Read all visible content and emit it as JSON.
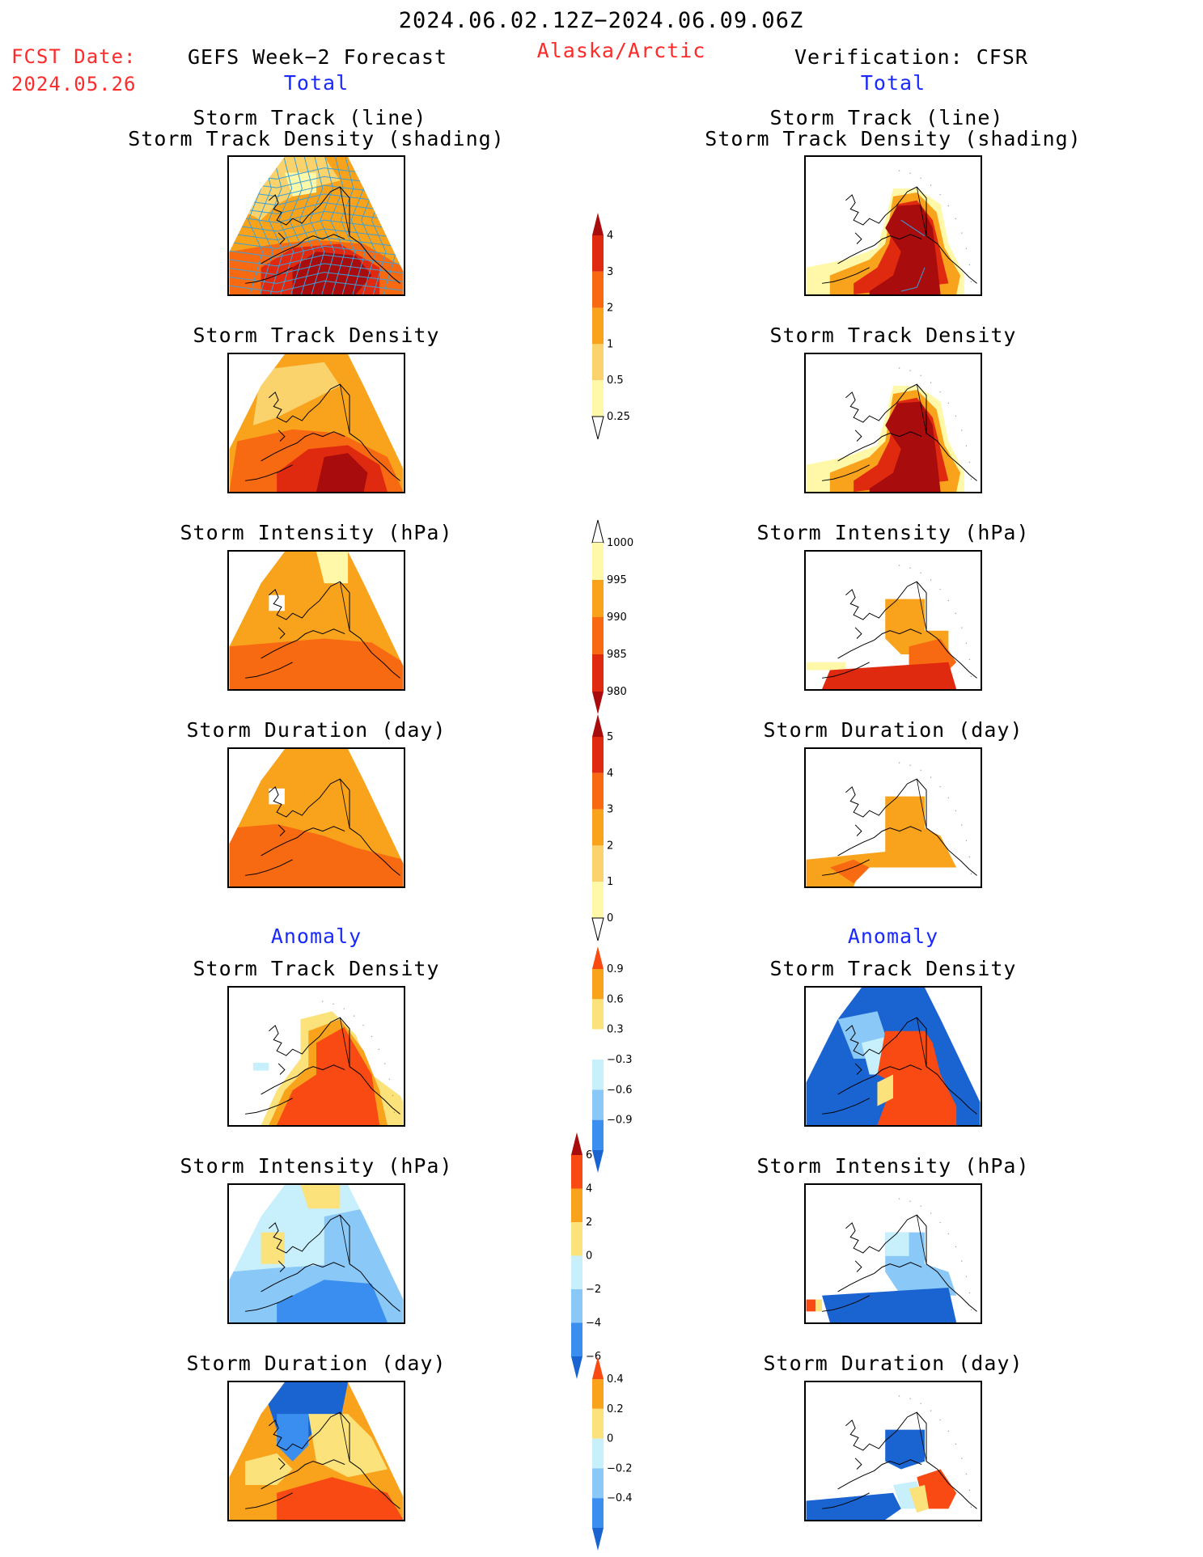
{
  "header": {
    "date_range": "2024.06.02.12Z−2024.06.09.06Z",
    "region": "Alaska/Arctic",
    "fcst_label": "FCST Date:",
    "fcst_date": "2024.05.26",
    "left_title": "GEFS Week−2 Forecast",
    "right_title": "Verification: CFSR",
    "total_label": "Total",
    "anomaly_label": "Anomaly"
  },
  "panel_titles": {
    "track_line": "Storm Track (line)",
    "track_shading": "Storm Track Density (shading)",
    "density": "Storm Track Density",
    "intensity": "Storm Intensity (hPa)",
    "duration": "Storm Duration (day)"
  },
  "chart_data": [
    {
      "type": "heatmap",
      "title": "Storm Track Density (shading) with Storm Track (line)",
      "panels": [
        "GEFS Week-2 Forecast Total",
        "Verification: CFSR Total"
      ],
      "colorbar": {
        "ticks": [
          "0.25",
          "0.5",
          "1",
          "2",
          "3",
          "4"
        ],
        "colors": [
          "#ffffff",
          "#fff8a8",
          "#fbd36c",
          "#f9a31c",
          "#f86a12",
          "#e02a10",
          "#a80c0c"
        ]
      },
      "track_line_color": "#3aa0d8"
    },
    {
      "type": "heatmap",
      "title": "Storm Intensity (hPa) Total",
      "colorbar": {
        "ticks": [
          "1000",
          "995",
          "990",
          "985",
          "980"
        ],
        "colors": [
          "#ffffff",
          "#fff8a8",
          "#f9a31c",
          "#f86a12",
          "#e02a10",
          "#a80c0c"
        ]
      }
    },
    {
      "type": "heatmap",
      "title": "Storm Duration (day) Total",
      "colorbar": {
        "ticks": [
          "0",
          "1",
          "2",
          "3",
          "4",
          "5"
        ],
        "colors": [
          "#ffffff",
          "#fff8a8",
          "#fbd36c",
          "#f9a31c",
          "#f86a12",
          "#e02a10",
          "#a80c0c"
        ]
      }
    },
    {
      "type": "heatmap",
      "title": "Storm Track Density Anomaly",
      "colorbar": {
        "ticks": [
          "−0.9",
          "−0.6",
          "−0.3",
          "0.3",
          "0.6",
          "0.9"
        ],
        "colors": [
          "#1a64d2",
          "#3a8ef0",
          "#8ac8f8",
          "#c8f0fc",
          "#ffffff",
          "#fbe27a",
          "#f9a31c",
          "#f84a12"
        ]
      }
    },
    {
      "type": "heatmap",
      "title": "Storm Intensity (hPa) Anomaly",
      "colorbar": {
        "ticks": [
          "−6",
          "−4",
          "−2",
          "0",
          "2",
          "4",
          "6"
        ],
        "colors": [
          "#1a64d2",
          "#3a8ef0",
          "#8ac8f8",
          "#c8f0fc",
          "#fbe27a",
          "#f9a31c",
          "#f84a12",
          "#a80c0c"
        ]
      }
    },
    {
      "type": "heatmap",
      "title": "Storm Duration (day) Anomaly",
      "colorbar": {
        "ticks": [
          "−0.4",
          "−0.2",
          "0",
          "0.2",
          "0.4"
        ],
        "colors": [
          "#1a64d2",
          "#3a8ef0",
          "#8ac8f8",
          "#c8f0fc",
          "#fbe27a",
          "#f9a31c",
          "#f84a12"
        ]
      }
    }
  ]
}
